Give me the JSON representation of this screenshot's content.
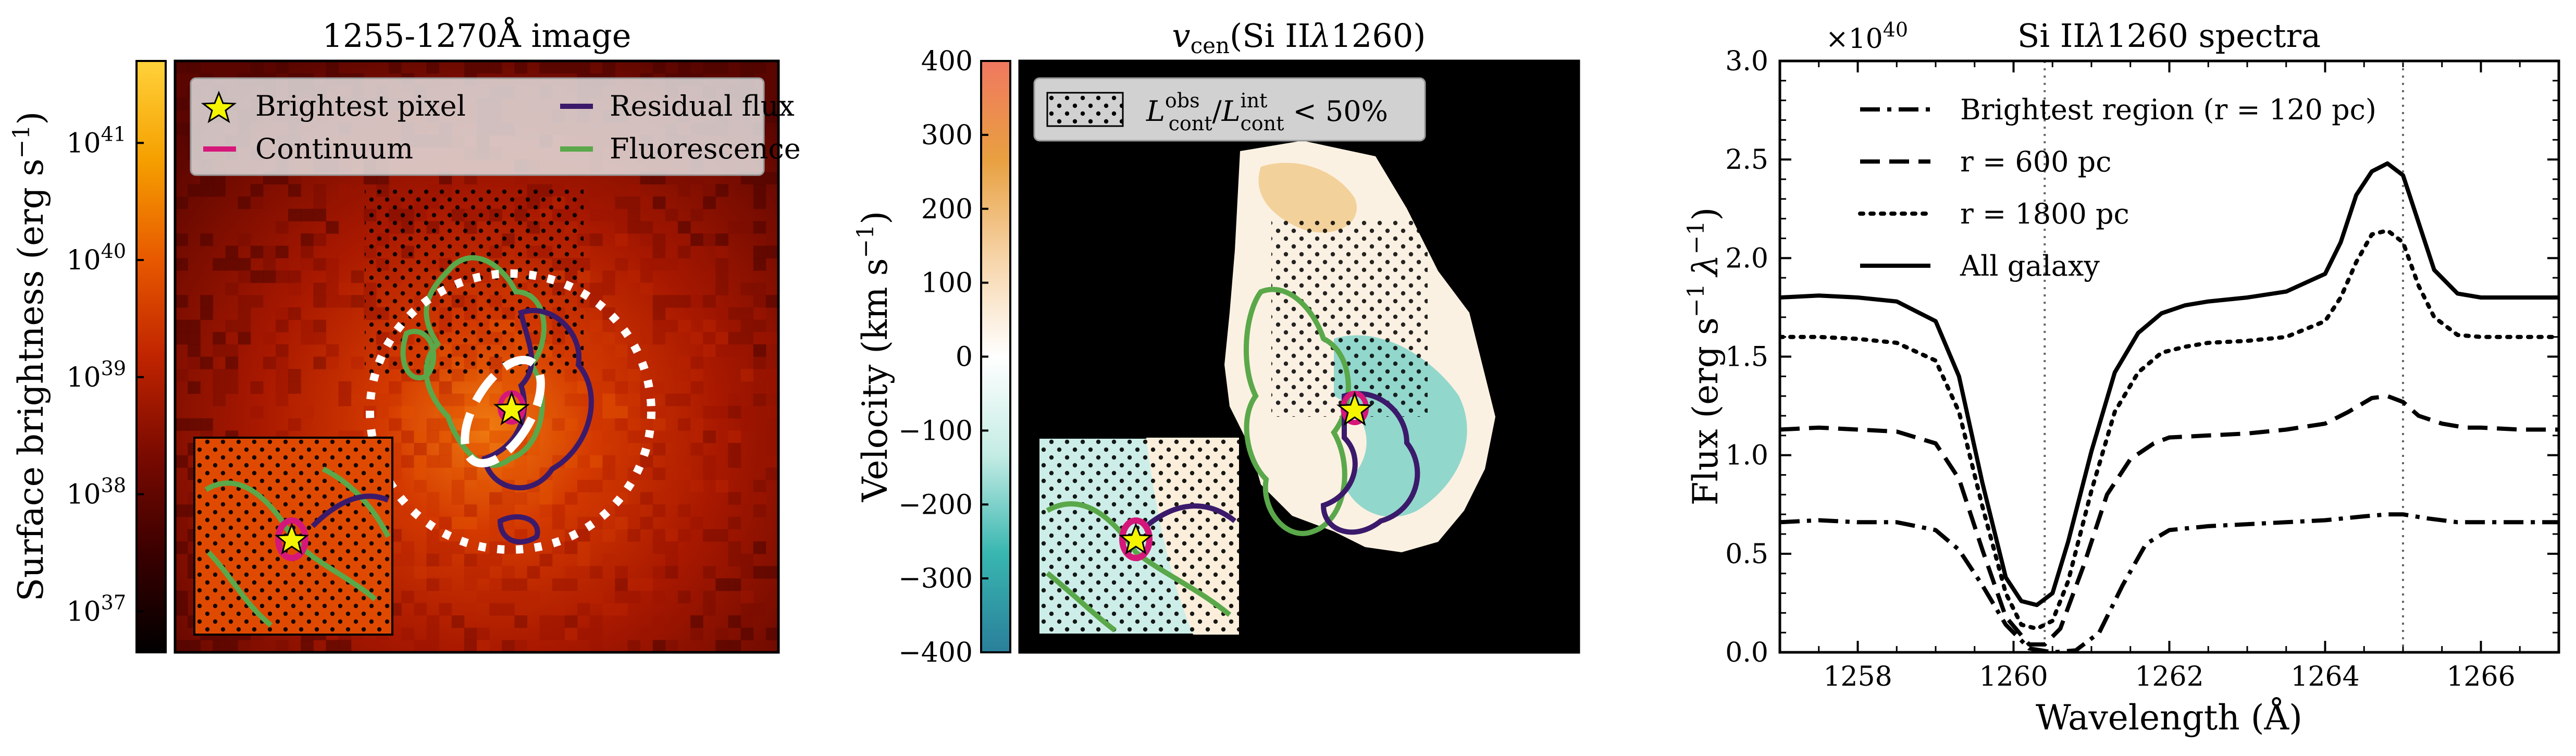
{
  "panels": {
    "image": {
      "title": "1255-1270Å image",
      "colorbar_label": "Surface brightness (erg s",
      "colorbar_label_sup": "−1",
      "colorbar_label_end": ")",
      "colorbar_ticks": [
        {
          "base": "10",
          "exp": "41",
          "value": 41
        },
        {
          "base": "10",
          "exp": "40",
          "value": 40
        },
        {
          "base": "10",
          "exp": "39",
          "value": 39
        },
        {
          "base": "10",
          "exp": "38",
          "value": 38
        },
        {
          "base": "10",
          "exp": "37",
          "value": 37
        }
      ],
      "colorbar_range_log": [
        36.65,
        41.7
      ],
      "colormap": [
        "#000000",
        "#3a0000",
        "#7a0a00",
        "#c02400",
        "#e85a00",
        "#f5a000",
        "#ffd23a"
      ],
      "legend": {
        "position": "top",
        "entries": [
          {
            "label": "Brightest pixel",
            "kind": "star",
            "color": "#f5f500"
          },
          {
            "label": "Residual flux",
            "kind": "line",
            "color": "#3b1a6b"
          },
          {
            "label": "Continuum",
            "kind": "line",
            "color": "#d6177a"
          },
          {
            "label": "Fluorescence",
            "kind": "line",
            "color": "#5aa84a"
          }
        ]
      }
    },
    "velocity": {
      "title_italic": "v",
      "title_sub": "cen",
      "title_rest": "(Si II",
      "title_lambda": "λ",
      "title_end": "1260)",
      "colorbar_label": "Velocity (km s",
      "colorbar_label_sup": "−1",
      "colorbar_label_end": ")",
      "colorbar_ticks": [
        400,
        300,
        200,
        100,
        0,
        -100,
        -200,
        -300,
        -400
      ],
      "colorbar_range": [
        -400,
        400
      ],
      "colormap": [
        "#2a7f9a",
        "#38b6b0",
        "#c4ece4",
        "#ffffff",
        "#f6d4a8",
        "#e8a040",
        "#f07860"
      ],
      "legend_text": {
        "L": "L",
        "sup_obs": "obs",
        "sub_cont": "cont",
        "slash": "/",
        "sup_int": "int",
        "rest": " < 50%"
      }
    },
    "spectra": {
      "title": "Si II",
      "title_lambda": "λ",
      "title_end": "1260 spectra",
      "scale_base": "×10",
      "scale_exp": "40",
      "ylabel": "Flux (erg s",
      "ylabel_sup1": "−1",
      "ylabel_lambda": "λ",
      "ylabel_sup2": "−1",
      "ylabel_end": ")",
      "xlabel": "Wavelength (Å)"
    }
  },
  "chart_data": {
    "type": "line",
    "title": "Si IIλ1260 spectra",
    "xlabel": "Wavelength (Å)",
    "ylabel": "Flux (erg s−1 λ−1)",
    "y_scale": "×10^40",
    "xlim": [
      1257,
      1267
    ],
    "ylim": [
      0,
      3.0
    ],
    "xticks": [
      1258,
      1260,
      1262,
      1264,
      1266
    ],
    "yticks": [
      0.0,
      0.5,
      1.0,
      1.5,
      2.0,
      2.5,
      3.0
    ],
    "vlines": [
      1260.4,
      1265.0
    ],
    "legend_position": "top-left",
    "series": [
      {
        "name": "Brightest region (r = 120 pc)",
        "style": "dashdot",
        "x": [
          1257.0,
          1257.5,
          1258.0,
          1258.5,
          1259.0,
          1259.3,
          1259.6,
          1259.9,
          1260.2,
          1260.5,
          1260.8,
          1261.1,
          1261.4,
          1261.7,
          1262.0,
          1262.5,
          1263.0,
          1263.5,
          1264.0,
          1264.5,
          1264.8,
          1265.0,
          1265.3,
          1265.7,
          1266.0,
          1266.5,
          1267.0
        ],
        "y": [
          0.66,
          0.67,
          0.66,
          0.66,
          0.62,
          0.52,
          0.34,
          0.14,
          0.02,
          0.0,
          0.01,
          0.1,
          0.34,
          0.55,
          0.62,
          0.64,
          0.65,
          0.66,
          0.67,
          0.69,
          0.7,
          0.7,
          0.68,
          0.66,
          0.66,
          0.66,
          0.66
        ]
      },
      {
        "name": "r = 600 pc",
        "style": "dashed",
        "x": [
          1257.0,
          1257.5,
          1258.0,
          1258.5,
          1259.0,
          1259.3,
          1259.6,
          1259.9,
          1260.2,
          1260.4,
          1260.6,
          1260.9,
          1261.2,
          1261.5,
          1261.8,
          1262.0,
          1262.5,
          1263.0,
          1263.5,
          1264.0,
          1264.3,
          1264.6,
          1264.8,
          1265.0,
          1265.2,
          1265.5,
          1265.8,
          1266.0,
          1266.5,
          1267.0
        ],
        "y": [
          1.13,
          1.14,
          1.13,
          1.12,
          1.06,
          0.88,
          0.52,
          0.18,
          0.04,
          0.04,
          0.12,
          0.44,
          0.8,
          0.98,
          1.06,
          1.09,
          1.1,
          1.11,
          1.13,
          1.16,
          1.22,
          1.29,
          1.3,
          1.27,
          1.2,
          1.16,
          1.14,
          1.14,
          1.13,
          1.13
        ]
      },
      {
        "name": "r = 1800 pc",
        "style": "dotted",
        "x": [
          1257.0,
          1257.5,
          1258.0,
          1258.5,
          1259.0,
          1259.3,
          1259.6,
          1259.9,
          1260.1,
          1260.3,
          1260.5,
          1260.7,
          1261.0,
          1261.3,
          1261.6,
          1261.9,
          1262.2,
          1262.5,
          1263.0,
          1263.5,
          1264.0,
          1264.2,
          1264.4,
          1264.6,
          1264.8,
          1265.0,
          1265.2,
          1265.4,
          1265.7,
          1266.0,
          1266.5,
          1267.0
        ],
        "y": [
          1.6,
          1.6,
          1.59,
          1.57,
          1.48,
          1.22,
          0.74,
          0.3,
          0.14,
          0.12,
          0.16,
          0.36,
          0.82,
          1.22,
          1.42,
          1.52,
          1.55,
          1.57,
          1.58,
          1.6,
          1.68,
          1.8,
          1.98,
          2.12,
          2.14,
          2.08,
          1.86,
          1.7,
          1.61,
          1.6,
          1.6,
          1.6
        ]
      },
      {
        "name": "All galaxy",
        "style": "solid",
        "x": [
          1257.0,
          1257.5,
          1258.0,
          1258.5,
          1259.0,
          1259.3,
          1259.6,
          1259.9,
          1260.1,
          1260.3,
          1260.5,
          1260.7,
          1261.0,
          1261.3,
          1261.6,
          1261.9,
          1262.2,
          1262.5,
          1263.0,
          1263.5,
          1264.0,
          1264.2,
          1264.4,
          1264.6,
          1264.8,
          1265.0,
          1265.2,
          1265.4,
          1265.7,
          1266.0,
          1266.5,
          1267.0
        ],
        "y": [
          1.8,
          1.81,
          1.8,
          1.78,
          1.68,
          1.4,
          0.86,
          0.38,
          0.26,
          0.24,
          0.3,
          0.56,
          1.02,
          1.42,
          1.62,
          1.72,
          1.76,
          1.78,
          1.8,
          1.83,
          1.92,
          2.08,
          2.32,
          2.44,
          2.48,
          2.42,
          2.18,
          1.94,
          1.82,
          1.8,
          1.8,
          1.8
        ]
      }
    ]
  }
}
